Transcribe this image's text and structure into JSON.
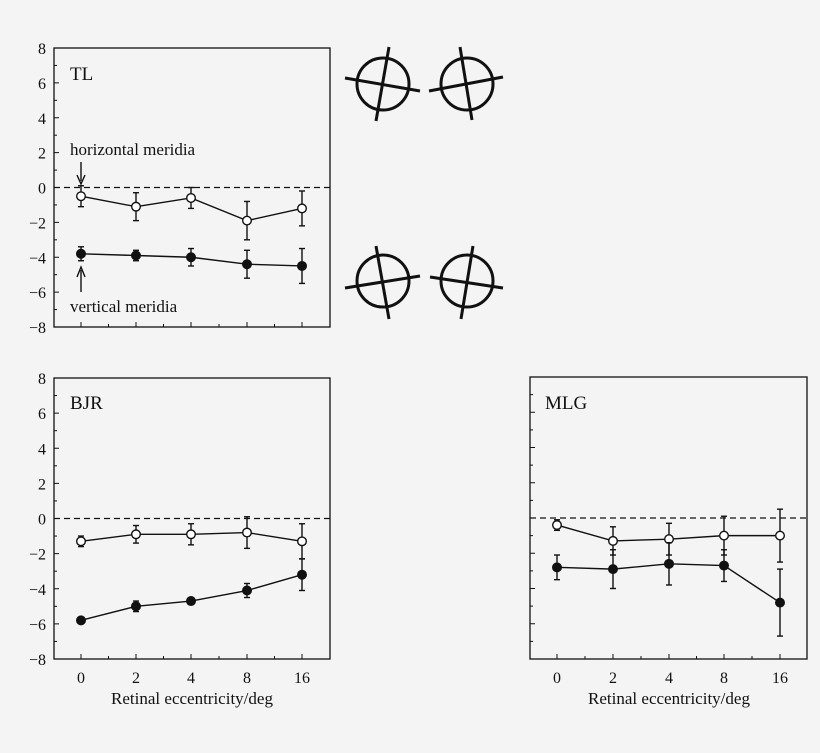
{
  "chart_data": [
    {
      "type": "line",
      "title": "TL",
      "x": [
        0,
        2,
        4,
        8,
        16
      ],
      "ylim": [
        -8,
        8
      ],
      "yticks": [
        -8,
        -6,
        -4,
        -2,
        0,
        2,
        4,
        6,
        8
      ],
      "show_yticklabels": true,
      "xlabel": "",
      "reference_line": 0,
      "annotations": [
        {
          "text": "horizontal meridia",
          "target_series": 0,
          "target_x": 0
        },
        {
          "text": "vertical meridia",
          "target_series": 1,
          "target_x": 0
        }
      ],
      "series": [
        {
          "marker": "open-circle",
          "values": [
            -0.5,
            -1.1,
            -0.6,
            -1.9,
            -1.2
          ],
          "errors": [
            0.6,
            0.8,
            0.6,
            1.1,
            1.0
          ]
        },
        {
          "marker": "filled-circle",
          "values": [
            -3.8,
            -3.9,
            -4.0,
            -4.4,
            -4.5
          ],
          "errors": [
            0.4,
            0.3,
            0.5,
            0.8,
            1.0
          ]
        }
      ]
    },
    {
      "type": "line",
      "title": "BJR",
      "x": [
        0,
        2,
        4,
        8,
        16
      ],
      "xticklabels": [
        "0",
        "2",
        "4",
        "8",
        "16"
      ],
      "ylim": [
        -8,
        8
      ],
      "yticks": [
        -8,
        -6,
        -4,
        -2,
        0,
        2,
        4,
        6,
        8
      ],
      "show_yticklabels": true,
      "xlabel": "Retinal eccentricity/deg",
      "reference_line": 0,
      "series": [
        {
          "marker": "open-circle",
          "values": [
            -1.3,
            -0.9,
            -0.9,
            -0.8,
            -1.3
          ],
          "errors": [
            0.3,
            0.5,
            0.6,
            0.9,
            1.0
          ]
        },
        {
          "marker": "filled-circle",
          "values": [
            -5.8,
            -5.0,
            -4.7,
            -4.1,
            -3.2
          ],
          "errors": [
            0.1,
            0.3,
            0.1,
            0.4,
            0.9
          ]
        }
      ]
    },
    {
      "type": "line",
      "title": "MLG",
      "x": [
        0,
        2,
        4,
        8,
        16
      ],
      "xticklabels": [
        "0",
        "2",
        "4",
        "8",
        "16"
      ],
      "ylim": [
        -8,
        8
      ],
      "yticks": [
        -8,
        -6,
        -4,
        -2,
        0,
        2,
        4,
        6,
        8
      ],
      "show_yticklabels": false,
      "xlabel": "Retinal eccentricity/deg",
      "reference_line": 0,
      "series": [
        {
          "marker": "open-circle",
          "values": [
            -0.4,
            -1.3,
            -1.2,
            -1.0,
            -1.0
          ],
          "errors": [
            0.3,
            0.8,
            0.9,
            1.1,
            1.5
          ]
        },
        {
          "marker": "filled-circle",
          "values": [
            -2.8,
            -2.9,
            -2.6,
            -2.7,
            -4.8
          ],
          "errors": [
            0.7,
            1.1,
            1.2,
            0.9,
            1.9
          ]
        }
      ]
    }
  ],
  "icons": [
    "crosshair-icon",
    "crosshair-icon",
    "crosshair-icon",
    "crosshair-icon"
  ]
}
